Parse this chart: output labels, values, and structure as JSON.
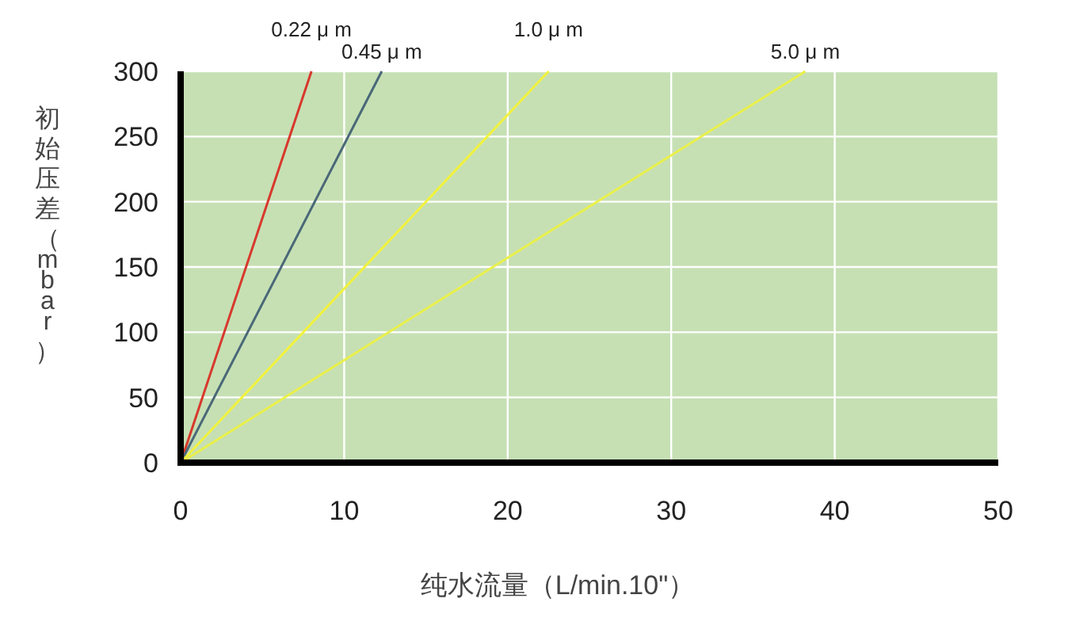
{
  "chart_data": {
    "type": "line",
    "xlabel": "纯水流量（L/min.10\"）",
    "ylabel": "初始压差（mbar）",
    "xlim": [
      0,
      50
    ],
    "ylim": [
      0,
      300
    ],
    "xticks": [
      0,
      10,
      20,
      30,
      40,
      50
    ],
    "yticks": [
      0,
      50,
      100,
      150,
      200,
      250,
      300
    ],
    "grid": true,
    "marker": "none",
    "line_style": "solid",
    "series": [
      {
        "name": "0.22 μ m",
        "color": "#d8382c",
        "x": [
          0,
          8
        ],
        "values": [
          0,
          300
        ]
      },
      {
        "name": "0.45 μ m",
        "color": "#4a6878",
        "x": [
          0,
          12.3
        ],
        "values": [
          0,
          300
        ]
      },
      {
        "name": "1.0 μ m",
        "color": "#f2f23c",
        "x": [
          0,
          22.5
        ],
        "values": [
          0,
          300
        ]
      },
      {
        "name": "5.0 μ m",
        "color": "#eaf04a",
        "x": [
          0,
          38.2
        ],
        "values": [
          0,
          300
        ]
      }
    ]
  }
}
